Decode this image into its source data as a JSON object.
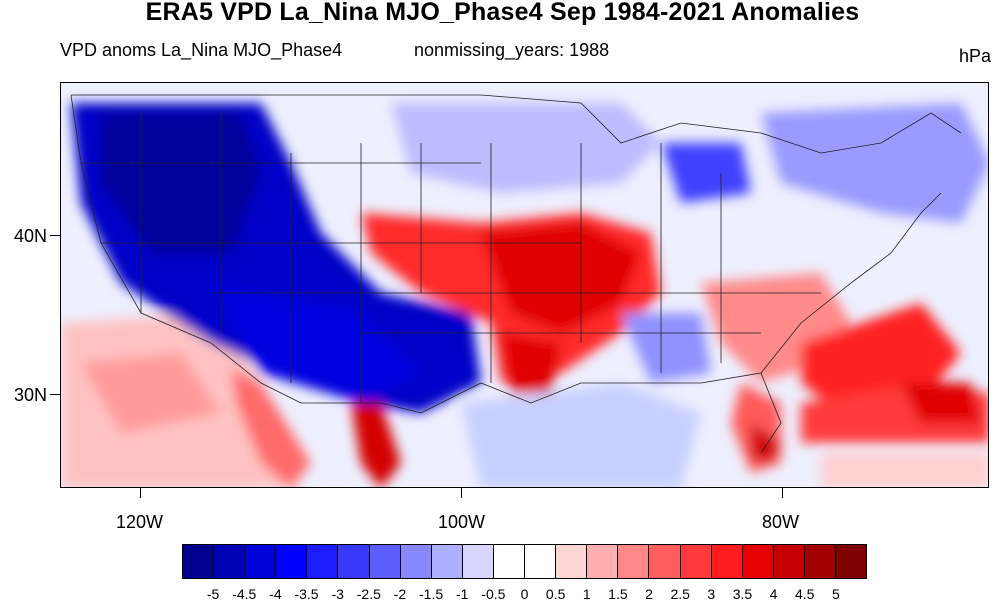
{
  "title": "ERA5 VPD La_Nina MJO_Phase4 Sep 1984-2021 Anomalies",
  "subtitle_left": "VPD anoms La_Nina MJO_Phase4",
  "subtitle_center": "nonmissing_years: 1988",
  "units": "hPa",
  "map": {
    "region": "Contiguous United States",
    "lat_labels": [
      "40N",
      "30N"
    ],
    "lon_labels": [
      "120W",
      "100W",
      "80W"
    ]
  },
  "colorbar": {
    "labels": [
      "-5",
      "-4.5",
      "-4",
      "-3.5",
      "-3",
      "-2.5",
      "-2",
      "-1.5",
      "-1",
      "-0.5",
      "0",
      "0.5",
      "1",
      "1.5",
      "2",
      "2.5",
      "3",
      "3.5",
      "4",
      "4.5",
      "5"
    ],
    "colors": [
      "#00008f",
      "#0000b4",
      "#0000d9",
      "#0000ff",
      "#1c1cff",
      "#3a3aff",
      "#5e5eff",
      "#8787ff",
      "#afafff",
      "#d6d6ff",
      "#ffffff",
      "#ffffff",
      "#ffd6d6",
      "#ffafaf",
      "#ff8787",
      "#ff5e5e",
      "#ff3a3a",
      "#ff1c1c",
      "#e60000",
      "#c40000",
      "#a30000",
      "#7f0000"
    ]
  }
}
